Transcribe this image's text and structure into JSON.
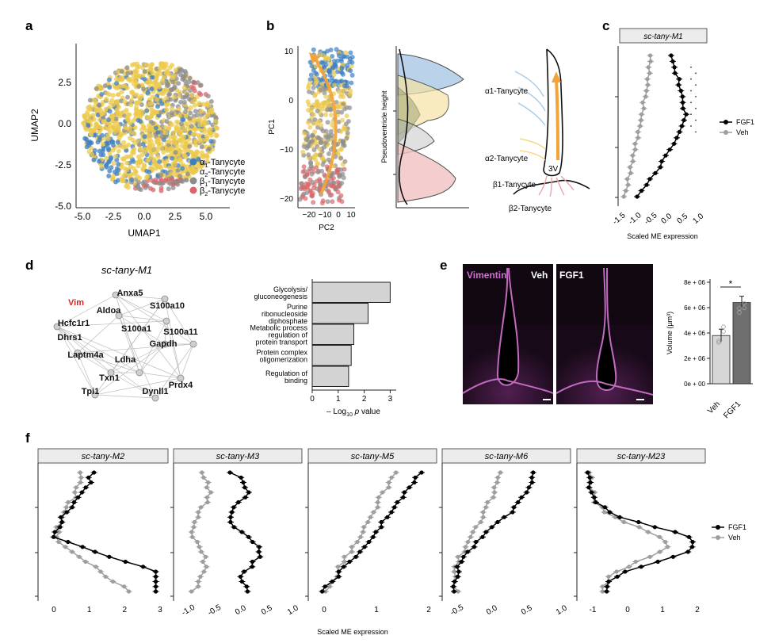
{
  "panel_letters": {
    "a": "a",
    "b": "b",
    "c": "c",
    "d": "d",
    "e": "e",
    "f": "f"
  },
  "panel_a": {
    "xlabel": "UMAP1",
    "ylabel": "UMAP2",
    "xticks": [
      "-5.0",
      "-2.5",
      "0.0",
      "2.5",
      "5.0"
    ],
    "yticks": [
      "2.5",
      "0.0",
      "-2.5",
      "-5.0"
    ],
    "legend": [
      {
        "prefix": "α",
        "sub": "1",
        "suffix": "-Tanycyte",
        "color": "#3f7fc1"
      },
      {
        "prefix": "α",
        "sub": "2",
        "suffix": "-Tanycyte",
        "color": "#ecc94b"
      },
      {
        "prefix": "β",
        "sub": "1",
        "suffix": "-Tanycyte",
        "color": "#8c8c8c"
      },
      {
        "prefix": "β",
        "sub": "2",
        "suffix": "-Tanycyte",
        "color": "#d9666a"
      }
    ]
  },
  "panel_b": {
    "pc_xlabel": "PC2",
    "pc_ylabel": "PC1",
    "pc_xticks": [
      "−20",
      "−10",
      "0",
      "10"
    ],
    "pc_yticks": [
      "10",
      "0",
      "−10",
      "−20"
    ],
    "density_ylabel": "Pseudoventricle height",
    "schematic_labels": [
      "α1-Tanycyte",
      "α2-Tanycyte",
      "β1-Tanycyte",
      "β2-Tanycyte",
      "3V"
    ]
  },
  "panel_c": {
    "title": "sc-tany-M1",
    "xlabel": "Scaled ME expression",
    "xticks": [
      "-1.5",
      "-1.0",
      "-0.5",
      "0.0",
      "0.5",
      "1.0"
    ],
    "legend": [
      {
        "name": "FGF1",
        "color": "#000000"
      },
      {
        "name": "Veh",
        "color": "#9e9e9e"
      }
    ]
  },
  "panel_d": {
    "network_title": "sc-tany-M1",
    "nodes": [
      {
        "label": "Vim",
        "color": "#d62728"
      },
      {
        "label": "Anxa5",
        "color": "#111111"
      },
      {
        "label": "S100a10",
        "color": "#111111"
      },
      {
        "label": "Aldoa",
        "color": "#111111"
      },
      {
        "label": "Hcfc1r1",
        "color": "#111111"
      },
      {
        "label": "S100a1",
        "color": "#111111"
      },
      {
        "label": "S100a11",
        "color": "#111111"
      },
      {
        "label": "Dhrs1",
        "color": "#111111"
      },
      {
        "label": "Gapdh",
        "color": "#111111"
      },
      {
        "label": "Laptm4a",
        "color": "#111111"
      },
      {
        "label": "Ldha",
        "color": "#111111"
      },
      {
        "label": "Txn1",
        "color": "#111111"
      },
      {
        "label": "Prdx4",
        "color": "#111111"
      },
      {
        "label": "Tpi1",
        "color": "#111111"
      },
      {
        "label": "Dynll1",
        "color": "#111111"
      }
    ],
    "bar_xlabel_prefix": "– Log",
    "bar_xlabel_sub": "10",
    "bar_xlabel_p": "p",
    "bar_xlabel_suffix": " value",
    "bar_xticks": [
      "0",
      "1",
      "2",
      "3"
    ]
  },
  "panel_e": {
    "img_labels": {
      "vimentin": "Vimentin",
      "veh": "Veh",
      "fgf1": "FGF1"
    },
    "ylabel": "Volume (µm³)",
    "yticks": [
      "0e + 00",
      "2e + 06",
      "4e + 06",
      "6e + 06",
      "8e + 06"
    ],
    "xcats": [
      "Veh",
      "FGF1"
    ],
    "sig": "*"
  },
  "panel_f": {
    "xlabel": "Scaled ME expression",
    "legend": [
      {
        "name": "FGF1",
        "color": "#000000"
      },
      {
        "name": "Veh",
        "color": "#9e9e9e"
      }
    ],
    "panels": [
      {
        "title": "sc-tany-M2",
        "xticks": [
          "0",
          "1",
          "2",
          "3"
        ]
      },
      {
        "title": "sc-tany-M3",
        "xticks": [
          "-1.0",
          "-0.5",
          "0.0",
          "0.5",
          "1.0"
        ]
      },
      {
        "title": "sc-tany-M5",
        "xticks": [
          "0",
          "1",
          "2"
        ]
      },
      {
        "title": "sc-tany-M6",
        "xticks": [
          "-0.5",
          "0.0",
          "0.5",
          "1.0"
        ]
      },
      {
        "title": "sc-tany-M23",
        "xticks": [
          "-1",
          "0",
          "1",
          "2"
        ]
      }
    ]
  },
  "chart_data": [
    {
      "type": "bar",
      "categories": [
        "Glycolysis/ gluconeogenesis",
        "Purine ribonucleoside diphosphate",
        "Metabolic process regulation of protein transport",
        "Protein complex oligomerization",
        "Regulation of binding"
      ],
      "category_lines": [
        [
          "Glycolysis/",
          "gluconeogenesis"
        ],
        [
          "Purine",
          "ribonucleoside",
          "diphosphate"
        ],
        [
          "Metabolic process",
          "regulation of",
          "protein transport"
        ],
        [
          "Protein complex",
          "oligomerization"
        ],
        [
          "Regulation of",
          "binding"
        ]
      ],
      "values": [
        3.0,
        2.15,
        1.6,
        1.5,
        1.4
      ],
      "xlabel": "– Log10 p value",
      "xlim": [
        0,
        3.2
      ]
    },
    {
      "type": "bar",
      "categories": [
        "Veh",
        "FGF1"
      ],
      "values": [
        3800000,
        6400000
      ],
      "errors": [
        500000,
        500000
      ],
      "ylabel": "Volume (µm³)",
      "ylim": [
        0,
        8000000
      ]
    }
  ]
}
